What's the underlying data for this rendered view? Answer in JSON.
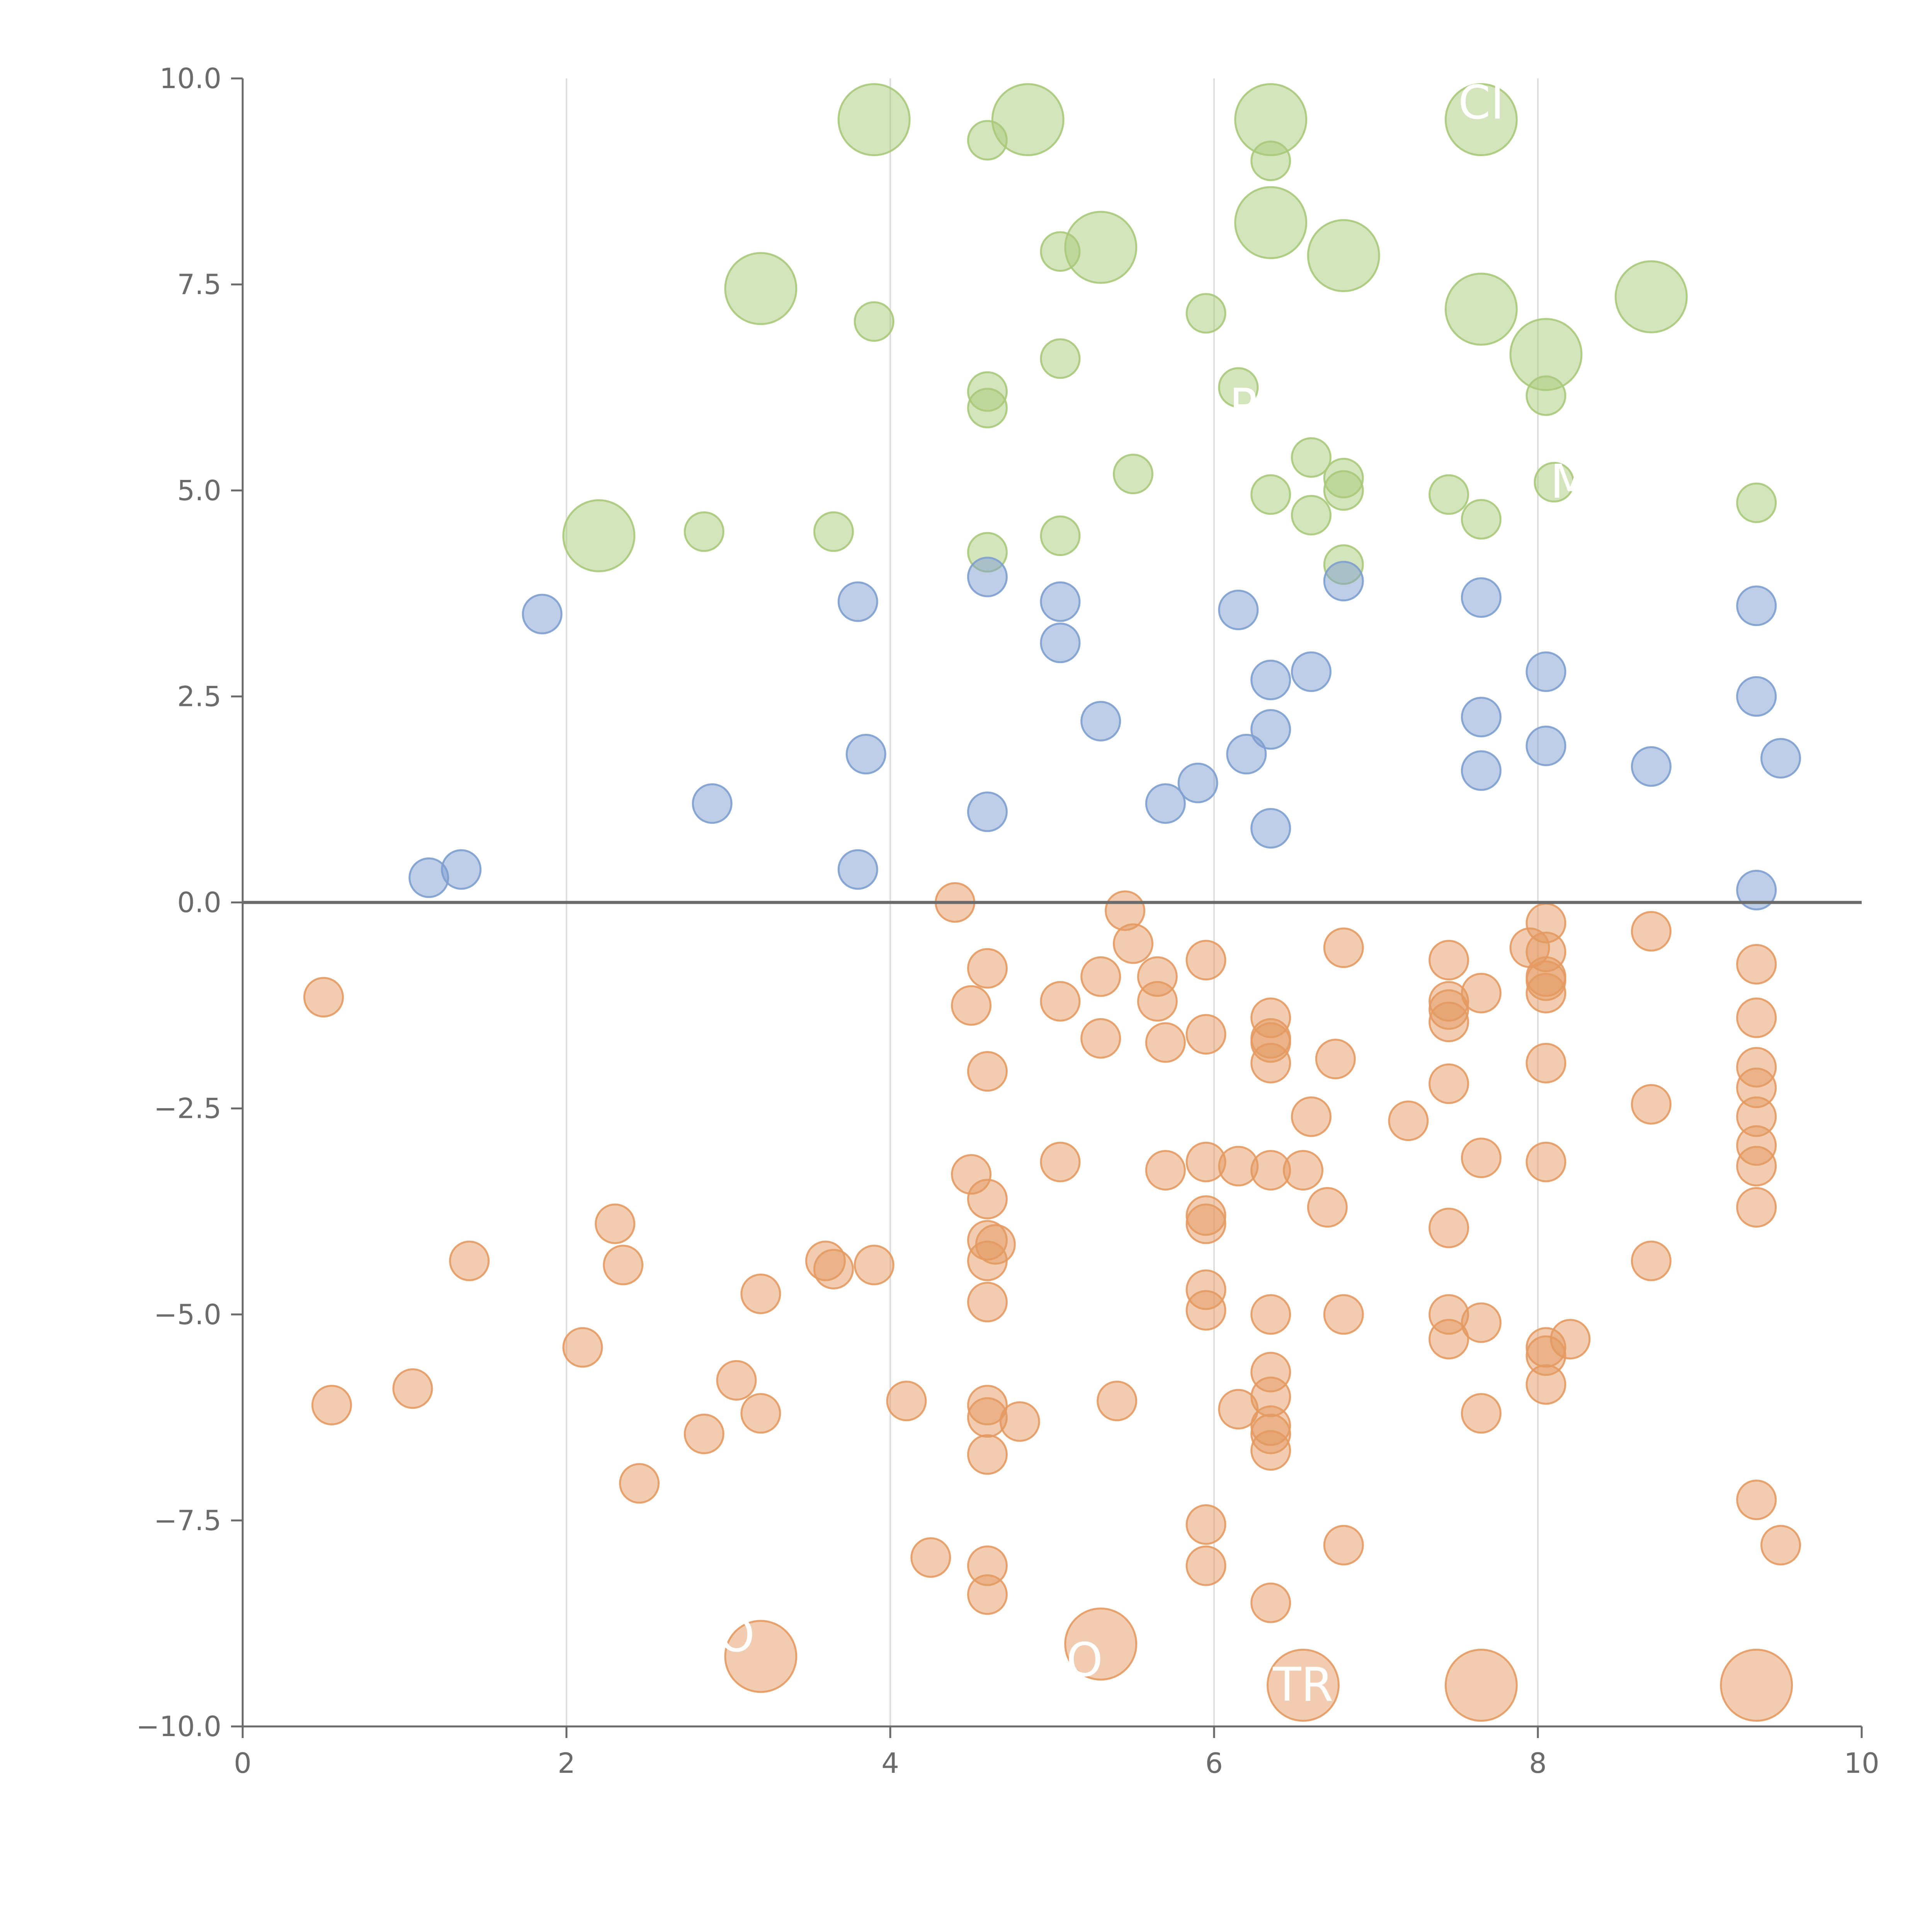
{
  "chart_data": {
    "type": "scatter",
    "title": "",
    "xlabel": "",
    "ylabel": "",
    "xlim": [
      0,
      10
    ],
    "ylim": [
      -10,
      10
    ],
    "grid": "vertical",
    "zero_line": 0,
    "x_ticks": [
      "0",
      "2",
      "4",
      "6",
      "8",
      "10"
    ],
    "y_ticks": [
      "10.0",
      "7.5",
      "5.0",
      "2.5",
      "0.0",
      "−2.5",
      "−5.0",
      "−7.5",
      "−10.0"
    ],
    "colors": {
      "green": "#a9c97a",
      "blue": "#7d9ecf",
      "orange": "#e49a62",
      "axis": "#6b6b6b",
      "grid": "#dddddd",
      "label": "#ffffff"
    },
    "series": [
      {
        "name": "green",
        "color": "#a9c97a",
        "points": [
          [
            3.9,
            9.5,
            "l"
          ],
          [
            4.85,
            9.5,
            "l"
          ],
          [
            6.35,
            9.5,
            "l"
          ],
          [
            7.65,
            9.5,
            "l"
          ],
          [
            4.6,
            9.25
          ],
          [
            6.35,
            9.0
          ],
          [
            6.35,
            8.25,
            "l"
          ],
          [
            5.3,
            7.95,
            "l"
          ],
          [
            6.8,
            7.85,
            "l"
          ],
          [
            5.05,
            7.9
          ],
          [
            3.2,
            7.45,
            "l"
          ],
          [
            8.7,
            7.35,
            "l"
          ],
          [
            7.65,
            7.2,
            "l"
          ],
          [
            3.9,
            7.05
          ],
          [
            5.95,
            7.15
          ],
          [
            8.05,
            6.65,
            "l"
          ],
          [
            5.05,
            6.6
          ],
          [
            4.6,
            6.2
          ],
          [
            4.6,
            6.0
          ],
          [
            6.15,
            6.25
          ],
          [
            8.05,
            6.15
          ],
          [
            6.6,
            5.4
          ],
          [
            5.5,
            5.2
          ],
          [
            6.8,
            5.15
          ],
          [
            6.8,
            5.0
          ],
          [
            8.1,
            5.1
          ],
          [
            6.35,
            4.95
          ],
          [
            7.45,
            4.95
          ],
          [
            9.35,
            4.85
          ],
          [
            6.6,
            4.7
          ],
          [
            7.65,
            4.65
          ],
          [
            2.2,
            4.45,
            "l"
          ],
          [
            2.85,
            4.5
          ],
          [
            3.65,
            4.5
          ],
          [
            5.05,
            4.45
          ],
          [
            4.6,
            4.25
          ],
          [
            6.8,
            4.1
          ]
        ]
      },
      {
        "name": "blue",
        "color": "#7d9ecf",
        "points": [
          [
            4.6,
            3.95
          ],
          [
            6.8,
            3.9
          ],
          [
            7.65,
            3.7
          ],
          [
            3.8,
            3.65
          ],
          [
            5.05,
            3.65
          ],
          [
            9.35,
            3.6
          ],
          [
            6.15,
            3.55
          ],
          [
            1.85,
            3.5
          ],
          [
            5.05,
            3.15
          ],
          [
            6.6,
            2.8
          ],
          [
            8.05,
            2.8
          ],
          [
            6.35,
            2.7
          ],
          [
            9.35,
            2.5
          ],
          [
            7.65,
            2.25
          ],
          [
            5.3,
            2.2
          ],
          [
            6.35,
            2.1
          ],
          [
            8.05,
            1.9
          ],
          [
            3.85,
            1.8
          ],
          [
            6.2,
            1.8
          ],
          [
            9.5,
            1.75
          ],
          [
            8.7,
            1.65
          ],
          [
            7.65,
            1.6
          ],
          [
            5.9,
            1.45
          ],
          [
            2.9,
            1.2
          ],
          [
            5.7,
            1.2
          ],
          [
            4.6,
            1.1
          ],
          [
            6.35,
            0.9
          ],
          [
            1.35,
            0.4
          ],
          [
            3.8,
            0.4
          ],
          [
            1.15,
            0.3
          ],
          [
            9.35,
            0.15
          ]
        ]
      },
      {
        "name": "orange",
        "color": "#e49a62",
        "points": [
          [
            4.4,
            0.0
          ],
          [
            5.45,
            -0.1
          ],
          [
            8.05,
            -0.25
          ],
          [
            8.7,
            -0.35
          ],
          [
            5.5,
            -0.5
          ],
          [
            7.95,
            -0.55
          ],
          [
            6.8,
            -0.55
          ],
          [
            8.05,
            -0.6
          ],
          [
            7.45,
            -0.7
          ],
          [
            5.95,
            -0.7
          ],
          [
            9.35,
            -0.75
          ],
          [
            4.6,
            -0.8
          ],
          [
            5.3,
            -0.9
          ],
          [
            5.65,
            -0.9
          ],
          [
            8.05,
            -0.9
          ],
          [
            8.05,
            -0.95
          ],
          [
            7.65,
            -1.1
          ],
          [
            8.05,
            -1.1
          ],
          [
            0.5,
            -1.15
          ],
          [
            4.5,
            -1.25
          ],
          [
            5.05,
            -1.2
          ],
          [
            5.65,
            -1.2
          ],
          [
            7.45,
            -1.2
          ],
          [
            7.45,
            -1.3
          ],
          [
            6.35,
            -1.4
          ],
          [
            9.35,
            -1.4
          ],
          [
            7.45,
            -1.45
          ],
          [
            5.95,
            -1.6
          ],
          [
            5.3,
            -1.65
          ],
          [
            6.35,
            -1.65
          ],
          [
            6.35,
            -1.7
          ],
          [
            5.7,
            -1.7
          ],
          [
            6.75,
            -1.9
          ],
          [
            6.35,
            -1.95
          ],
          [
            8.05,
            -1.95
          ],
          [
            9.35,
            -2.0
          ],
          [
            4.6,
            -2.05
          ],
          [
            7.45,
            -2.2
          ],
          [
            9.35,
            -2.25
          ],
          [
            8.7,
            -2.45
          ],
          [
            6.6,
            -2.6
          ],
          [
            9.35,
            -2.6
          ],
          [
            7.2,
            -2.65
          ],
          [
            9.35,
            -2.95
          ],
          [
            7.65,
            -3.1
          ],
          [
            5.05,
            -3.15
          ],
          [
            5.95,
            -3.15
          ],
          [
            6.15,
            -3.2
          ],
          [
            8.05,
            -3.15
          ],
          [
            9.35,
            -3.2
          ],
          [
            5.7,
            -3.25
          ],
          [
            6.35,
            -3.25
          ],
          [
            6.55,
            -3.25
          ],
          [
            4.5,
            -3.3
          ],
          [
            4.6,
            -3.6
          ],
          [
            6.7,
            -3.7
          ],
          [
            9.35,
            -3.7
          ],
          [
            5.95,
            -3.8
          ],
          [
            5.95,
            -3.9
          ],
          [
            2.3,
            -3.9
          ],
          [
            7.45,
            -3.95
          ],
          [
            4.6,
            -4.1
          ],
          [
            4.65,
            -4.15
          ],
          [
            1.4,
            -4.35
          ],
          [
            4.6,
            -4.35
          ],
          [
            3.6,
            -4.35
          ],
          [
            8.7,
            -4.35
          ],
          [
            2.35,
            -4.4
          ],
          [
            3.65,
            -4.45
          ],
          [
            3.9,
            -4.4
          ],
          [
            5.95,
            -4.7
          ],
          [
            3.2,
            -4.75
          ],
          [
            4.6,
            -4.85
          ],
          [
            5.95,
            -4.95
          ],
          [
            6.35,
            -5.0
          ],
          [
            6.8,
            -5.0
          ],
          [
            7.45,
            -5.0
          ],
          [
            7.65,
            -5.1
          ],
          [
            7.45,
            -5.3
          ],
          [
            8.2,
            -5.3
          ],
          [
            2.1,
            -5.4
          ],
          [
            8.05,
            -5.4
          ],
          [
            8.05,
            -5.5
          ],
          [
            6.35,
            -5.7
          ],
          [
            3.05,
            -5.8
          ],
          [
            8.05,
            -5.85
          ],
          [
            1.05,
            -5.9
          ],
          [
            6.35,
            -6.0
          ],
          [
            4.1,
            -6.05
          ],
          [
            5.4,
            -6.05
          ],
          [
            0.55,
            -6.1
          ],
          [
            4.6,
            -6.1
          ],
          [
            6.15,
            -6.15
          ],
          [
            3.2,
            -6.2
          ],
          [
            7.65,
            -6.2
          ],
          [
            4.6,
            -6.25
          ],
          [
            4.8,
            -6.3
          ],
          [
            6.35,
            -6.35
          ],
          [
            6.35,
            -6.45
          ],
          [
            2.85,
            -6.45
          ],
          [
            6.35,
            -6.65
          ],
          [
            4.6,
            -6.7
          ],
          [
            2.45,
            -7.05
          ],
          [
            9.35,
            -7.25
          ],
          [
            5.95,
            -7.55
          ],
          [
            6.8,
            -7.8
          ],
          [
            9.5,
            -7.8
          ],
          [
            4.25,
            -7.95
          ],
          [
            5.95,
            -8.05
          ],
          [
            4.6,
            -8.05
          ],
          [
            4.6,
            -8.4
          ],
          [
            6.35,
            -8.5
          ],
          [
            3.2,
            -9.15,
            "l"
          ],
          [
            5.3,
            -9.0,
            "l"
          ],
          [
            6.55,
            -9.5,
            "l"
          ],
          [
            7.65,
            -9.5,
            "l"
          ],
          [
            9.35,
            -9.5,
            "l"
          ]
        ]
      }
    ],
    "point_labels": [
      {
        "text": "CI",
        "x": 7.65,
        "y": 9.7
      },
      {
        "text": "M",
        "x": 8.2,
        "y": 5.1
      },
      {
        "text": "P",
        "x": 6.18,
        "y": 6.02
      },
      {
        "text": "TR",
        "x": 6.55,
        "y": -9.5
      },
      {
        "text": "O",
        "x": 5.2,
        "y": -9.2
      },
      {
        "text": "O",
        "x": 3.05,
        "y": -8.9
      }
    ]
  }
}
